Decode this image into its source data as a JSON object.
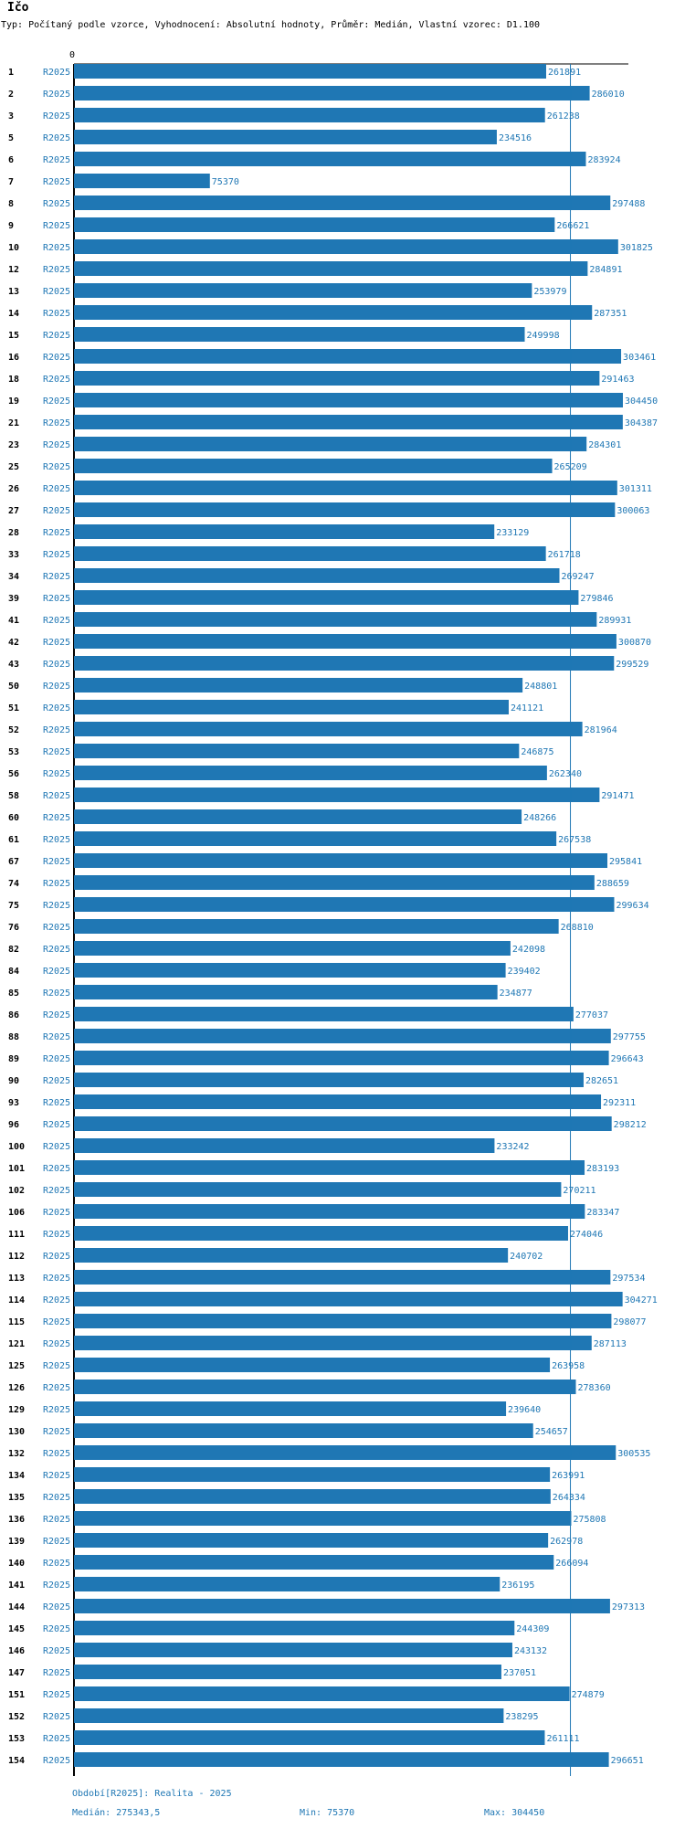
{
  "header": {
    "title": "Ičo",
    "subtitle": "Typ: Počítaný podle vzorce, Vyhodnocení: Absolutní hodnoty, Průměr: Medián, Vlastní vzorec: D1.100"
  },
  "colors": {
    "bar": "#1f77b4",
    "text": "#1f77b4",
    "axis": "#000000"
  },
  "chart_data": {
    "type": "bar",
    "orientation": "horizontal",
    "x_axis_tick": "0",
    "xlim": [
      0,
      304450
    ],
    "reference_line": 275343.5,
    "series": [
      {
        "name": "R2025"
      }
    ],
    "rows": [
      {
        "id": "1",
        "period": "R2025",
        "value": 261891
      },
      {
        "id": "2",
        "period": "R2025",
        "value": 286010
      },
      {
        "id": "3",
        "period": "R2025",
        "value": 261238
      },
      {
        "id": "5",
        "period": "R2025",
        "value": 234516
      },
      {
        "id": "6",
        "period": "R2025",
        "value": 283924
      },
      {
        "id": "7",
        "period": "R2025",
        "value": 75370
      },
      {
        "id": "8",
        "period": "R2025",
        "value": 297488
      },
      {
        "id": "9",
        "period": "R2025",
        "value": 266621
      },
      {
        "id": "10",
        "period": "R2025",
        "value": 301825
      },
      {
        "id": "12",
        "period": "R2025",
        "value": 284891
      },
      {
        "id": "13",
        "period": "R2025",
        "value": 253979
      },
      {
        "id": "14",
        "period": "R2025",
        "value": 287351
      },
      {
        "id": "15",
        "period": "R2025",
        "value": 249998
      },
      {
        "id": "16",
        "period": "R2025",
        "value": 303461
      },
      {
        "id": "18",
        "period": "R2025",
        "value": 291463
      },
      {
        "id": "19",
        "period": "R2025",
        "value": 304450
      },
      {
        "id": "21",
        "period": "R2025",
        "value": 304387
      },
      {
        "id": "23",
        "period": "R2025",
        "value": 284301
      },
      {
        "id": "25",
        "period": "R2025",
        "value": 265209
      },
      {
        "id": "26",
        "period": "R2025",
        "value": 301311
      },
      {
        "id": "27",
        "period": "R2025",
        "value": 300063
      },
      {
        "id": "28",
        "period": "R2025",
        "value": 233129
      },
      {
        "id": "33",
        "period": "R2025",
        "value": 261718
      },
      {
        "id": "34",
        "period": "R2025",
        "value": 269247
      },
      {
        "id": "39",
        "period": "R2025",
        "value": 279846
      },
      {
        "id": "41",
        "period": "R2025",
        "value": 289931
      },
      {
        "id": "42",
        "period": "R2025",
        "value": 300870
      },
      {
        "id": "43",
        "period": "R2025",
        "value": 299529
      },
      {
        "id": "50",
        "period": "R2025",
        "value": 248801
      },
      {
        "id": "51",
        "period": "R2025",
        "value": 241121
      },
      {
        "id": "52",
        "period": "R2025",
        "value": 281964
      },
      {
        "id": "53",
        "period": "R2025",
        "value": 246875
      },
      {
        "id": "56",
        "period": "R2025",
        "value": 262340
      },
      {
        "id": "58",
        "period": "R2025",
        "value": 291471
      },
      {
        "id": "60",
        "period": "R2025",
        "value": 248266
      },
      {
        "id": "61",
        "period": "R2025",
        "value": 267538
      },
      {
        "id": "67",
        "period": "R2025",
        "value": 295841
      },
      {
        "id": "74",
        "period": "R2025",
        "value": 288659
      },
      {
        "id": "75",
        "period": "R2025",
        "value": 299634
      },
      {
        "id": "76",
        "period": "R2025",
        "value": 268810
      },
      {
        "id": "82",
        "period": "R2025",
        "value": 242098
      },
      {
        "id": "84",
        "period": "R2025",
        "value": 239402
      },
      {
        "id": "85",
        "period": "R2025",
        "value": 234877
      },
      {
        "id": "86",
        "period": "R2025",
        "value": 277037
      },
      {
        "id": "88",
        "period": "R2025",
        "value": 297755
      },
      {
        "id": "89",
        "period": "R2025",
        "value": 296643
      },
      {
        "id": "90",
        "period": "R2025",
        "value": 282651
      },
      {
        "id": "93",
        "period": "R2025",
        "value": 292311
      },
      {
        "id": "96",
        "period": "R2025",
        "value": 298212
      },
      {
        "id": "100",
        "period": "R2025",
        "value": 233242
      },
      {
        "id": "101",
        "period": "R2025",
        "value": 283193
      },
      {
        "id": "102",
        "period": "R2025",
        "value": 270211
      },
      {
        "id": "106",
        "period": "R2025",
        "value": 283347
      },
      {
        "id": "111",
        "period": "R2025",
        "value": 274046
      },
      {
        "id": "112",
        "period": "R2025",
        "value": 240702
      },
      {
        "id": "113",
        "period": "R2025",
        "value": 297534
      },
      {
        "id": "114",
        "period": "R2025",
        "value": 304271
      },
      {
        "id": "115",
        "period": "R2025",
        "value": 298077
      },
      {
        "id": "121",
        "period": "R2025",
        "value": 287113
      },
      {
        "id": "125",
        "period": "R2025",
        "value": 263958
      },
      {
        "id": "126",
        "period": "R2025",
        "value": 278360
      },
      {
        "id": "129",
        "period": "R2025",
        "value": 239640
      },
      {
        "id": "130",
        "period": "R2025",
        "value": 254657
      },
      {
        "id": "132",
        "period": "R2025",
        "value": 300535
      },
      {
        "id": "134",
        "period": "R2025",
        "value": 263991
      },
      {
        "id": "135",
        "period": "R2025",
        "value": 264334
      },
      {
        "id": "136",
        "period": "R2025",
        "value": 275808
      },
      {
        "id": "139",
        "period": "R2025",
        "value": 262978
      },
      {
        "id": "140",
        "period": "R2025",
        "value": 266094
      },
      {
        "id": "141",
        "period": "R2025",
        "value": 236195
      },
      {
        "id": "144",
        "period": "R2025",
        "value": 297313
      },
      {
        "id": "145",
        "period": "R2025",
        "value": 244309
      },
      {
        "id": "146",
        "period": "R2025",
        "value": 243132
      },
      {
        "id": "147",
        "period": "R2025",
        "value": 237051
      },
      {
        "id": "151",
        "period": "R2025",
        "value": 274879
      },
      {
        "id": "152",
        "period": "R2025",
        "value": 238295
      },
      {
        "id": "153",
        "period": "R2025",
        "value": 261111
      },
      {
        "id": "154",
        "period": "R2025",
        "value": 296651
      }
    ]
  },
  "footer": {
    "period_label": "Období[R2025]: Realita - 2025",
    "median_label": "Medián: 275343,5",
    "min_label": "Min: 75370",
    "max_label": "Max: 304450"
  }
}
